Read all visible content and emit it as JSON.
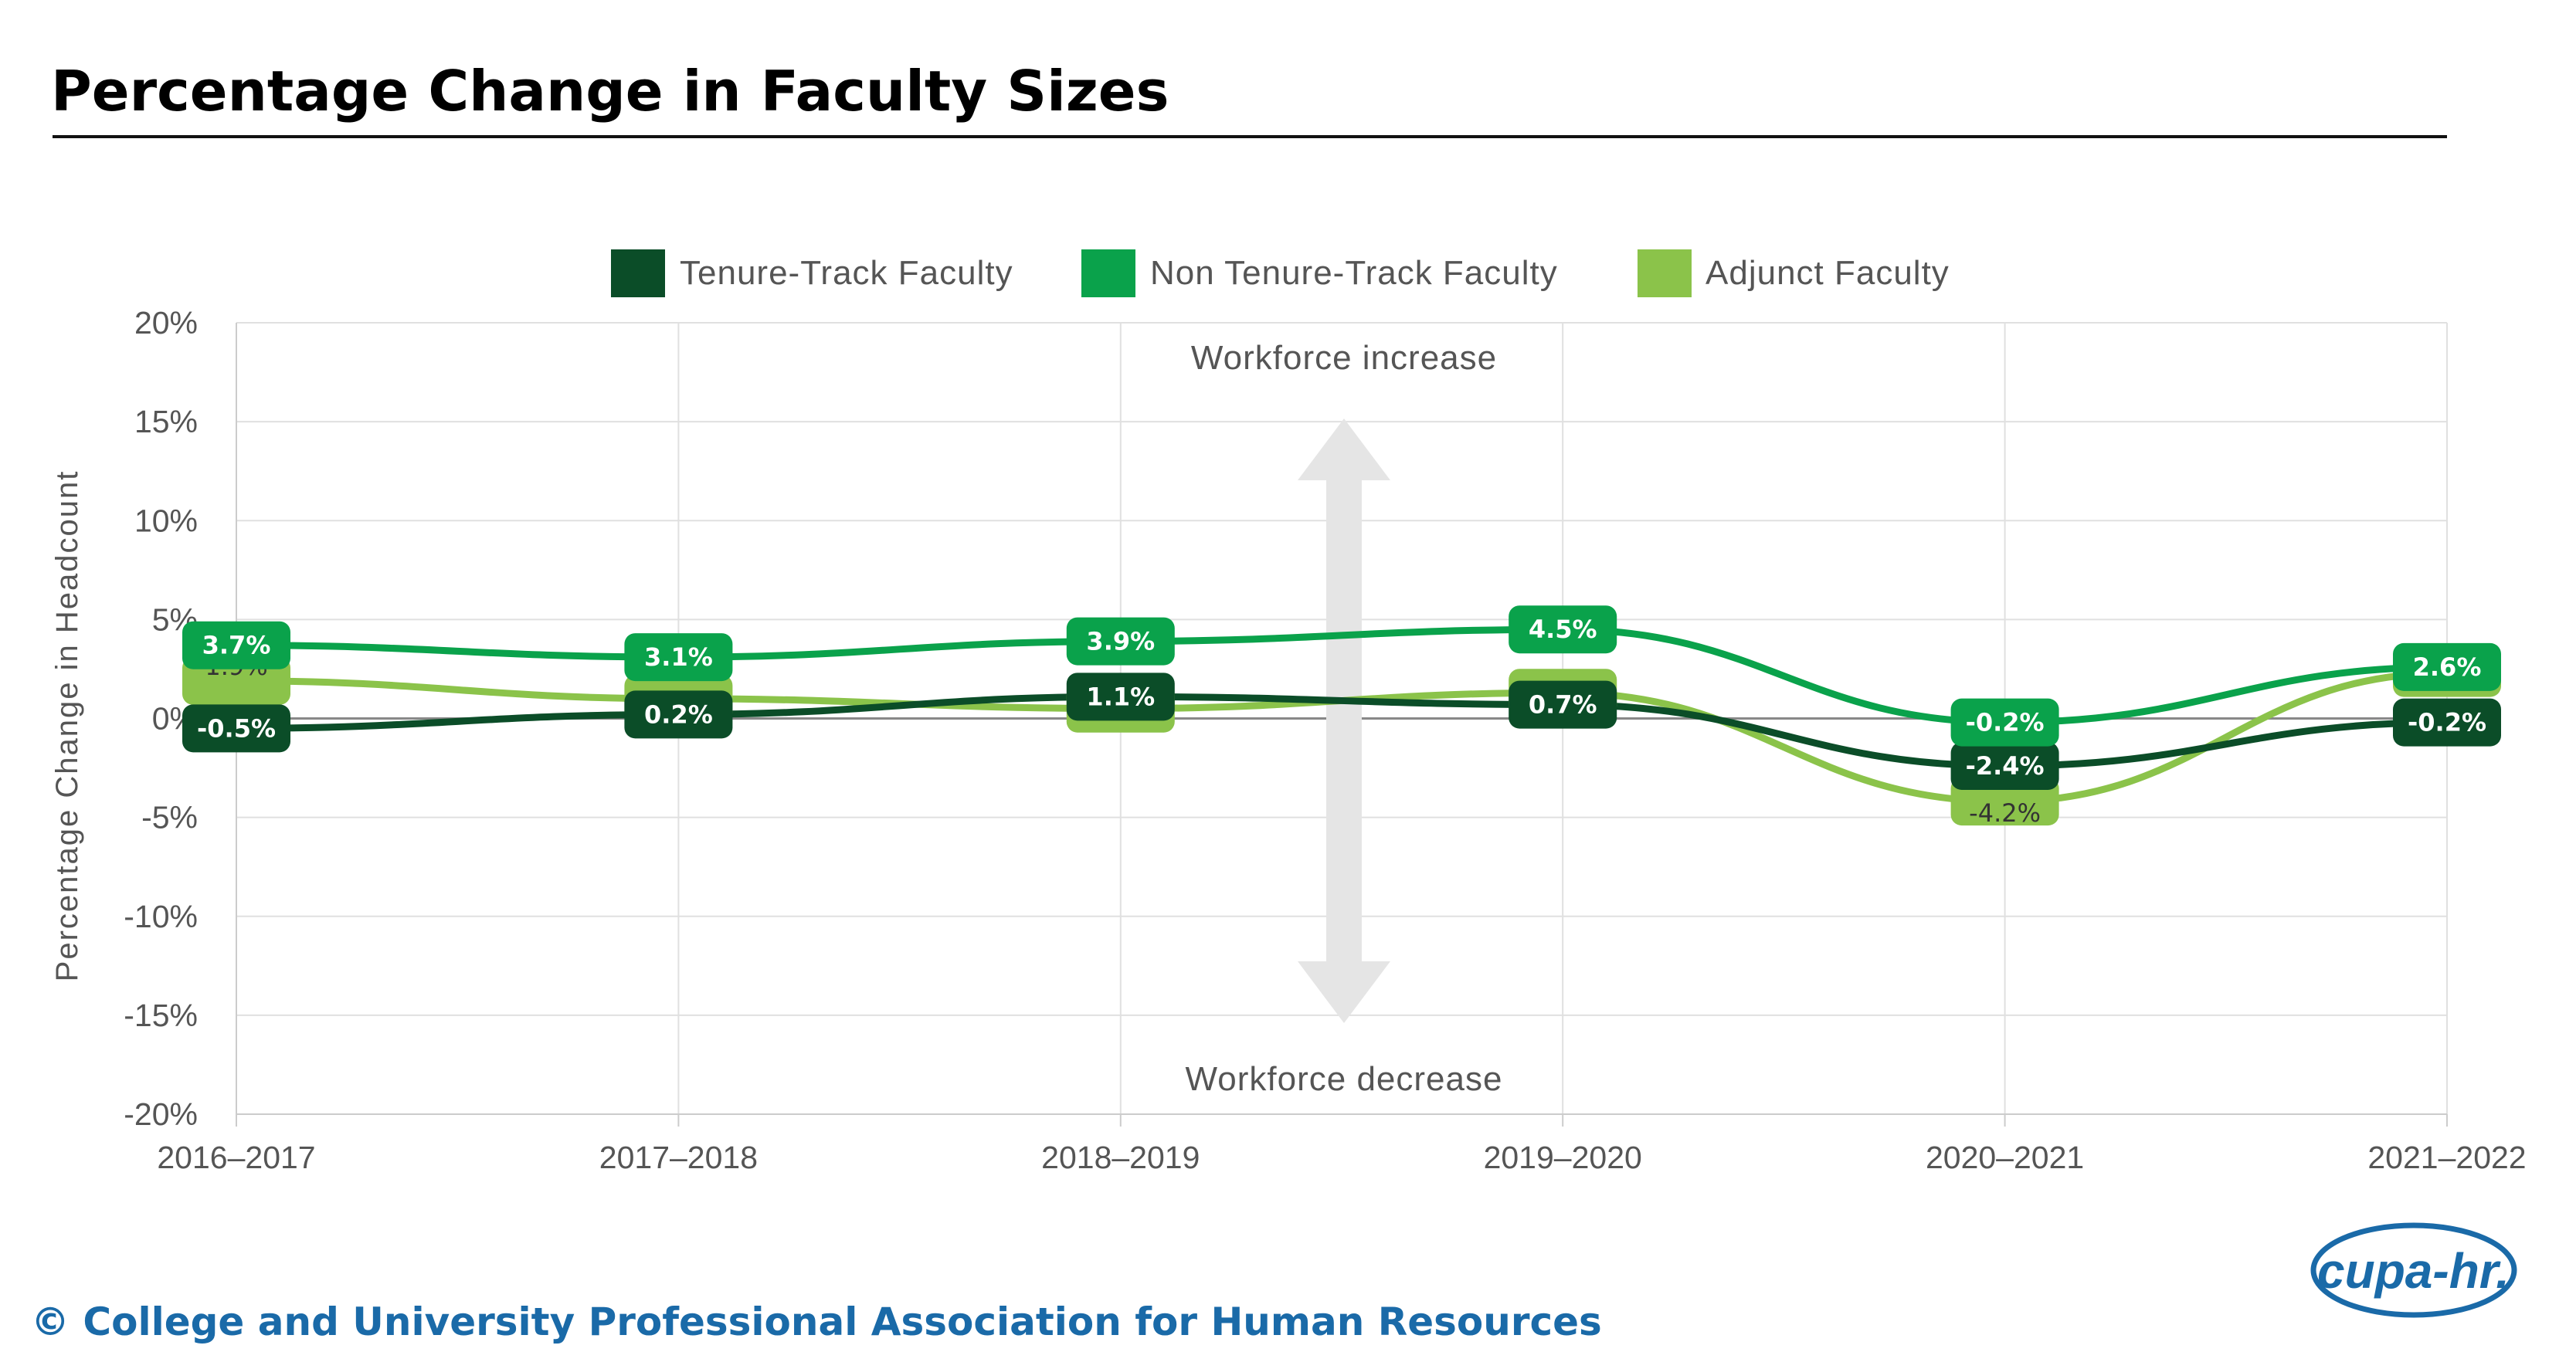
{
  "page": {
    "title": "Percentage Change in Faculty Sizes",
    "footer": "© College and University Professional Association for Human Resources",
    "logo_text": "cupa-hr."
  },
  "chart_data": {
    "type": "line",
    "title": "Percentage Change in Faculty Sizes",
    "xlabel": "",
    "ylabel": "Percentage Change in Headcount",
    "ylim": [
      -20,
      20
    ],
    "yticks": [
      20,
      15,
      10,
      5,
      0,
      -5,
      -10,
      -15,
      -20
    ],
    "ytick_labels": [
      "20%",
      "15%",
      "10%",
      "5%",
      "0%",
      "-5%",
      "-10%",
      "-15%",
      "-20%"
    ],
    "categories": [
      "2016–2017",
      "2017–2018",
      "2018–2019",
      "2019–2020",
      "2020–2021",
      "2021–2022"
    ],
    "legend_position": "top-center",
    "grid": true,
    "series": [
      {
        "name": "Adjunct Faculty",
        "color": "#8bc34a",
        "values": [
          1.9,
          1.0,
          0.5,
          1.3,
          -4.2,
          2.3
        ],
        "labels": [
          "1.9%",
          "",
          "",
          "",
          "-4.2%",
          ""
        ]
      },
      {
        "name": "Tenure-Track Faculty",
        "color": "#0b4d28",
        "values": [
          -0.5,
          0.2,
          1.1,
          0.7,
          -2.4,
          -0.2
        ],
        "labels": [
          "-0.5%",
          "0.2%",
          "1.1%",
          "0.7%",
          "-2.4%",
          "-0.2%"
        ]
      },
      {
        "name": "Non Tenure-Track Faculty",
        "color": "#0aa24b",
        "values": [
          3.7,
          3.1,
          3.9,
          4.5,
          -0.2,
          2.6
        ],
        "labels": [
          "3.7%",
          "3.1%",
          "3.9%",
          "4.5%",
          "-0.2%",
          "2.6%"
        ]
      }
    ],
    "legend_order": [
      "Tenure-Track Faculty",
      "Non Tenure-Track Faculty",
      "Adjunct Faculty"
    ],
    "annotations": {
      "increase": "Workforce increase",
      "decrease": "Workforce decrease"
    }
  }
}
